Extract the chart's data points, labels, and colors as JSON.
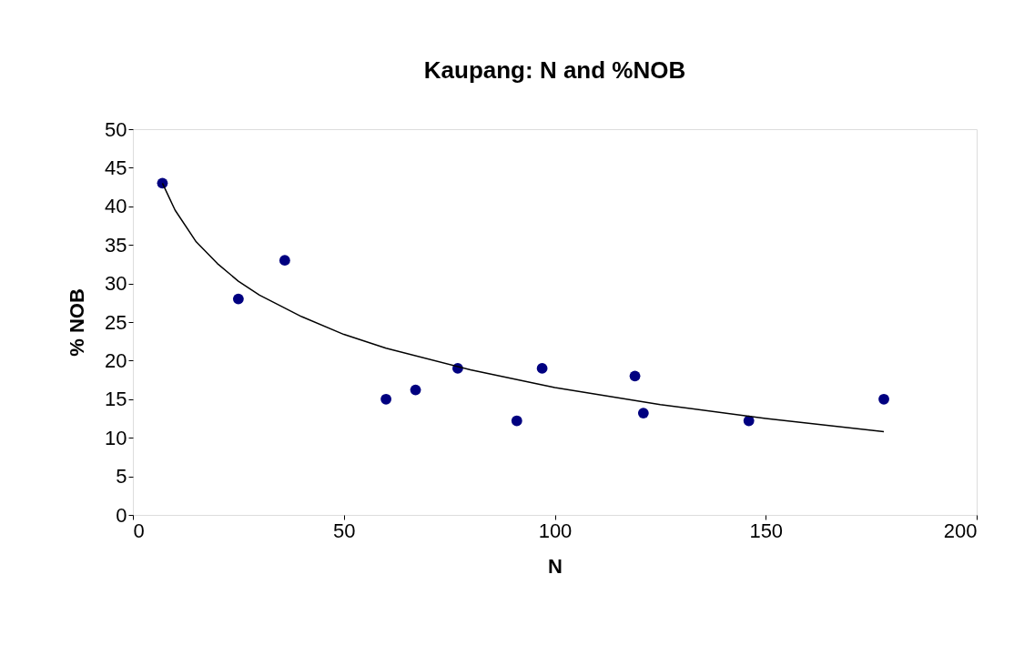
{
  "chart_data": {
    "type": "scatter",
    "title": "Kaupang: N and %NOB",
    "xlabel": "N",
    "ylabel": "% NOB",
    "xlim": [
      0,
      200
    ],
    "xticks": [
      0,
      50,
      100,
      150,
      200
    ],
    "ylim": [
      0,
      50
    ],
    "yticks": [
      0,
      5,
      10,
      15,
      20,
      25,
      30,
      35,
      40,
      45,
      50
    ],
    "grid": false,
    "marker": "circle",
    "series": [
      {
        "color": "#000080",
        "x": [
          7,
          25,
          36,
          60,
          67,
          77,
          91,
          97,
          119,
          121,
          146,
          178
        ],
        "values": [
          43,
          28,
          33,
          15,
          16.2,
          19,
          12.2,
          19,
          18,
          13.2,
          12.2,
          15
        ]
      },
      {
        "type": "line",
        "color": "#000000",
        "marker": "none",
        "line_style": "solid",
        "x": [
          7,
          10,
          15,
          20,
          25,
          30,
          40,
          50,
          60,
          80,
          100,
          125,
          150,
          178
        ],
        "values": [
          43,
          39.5,
          35.4,
          32.6,
          30.3,
          28.5,
          25.7,
          23.4,
          21.6,
          18.8,
          16.5,
          14.3,
          12.5,
          10.8
        ]
      }
    ]
  }
}
